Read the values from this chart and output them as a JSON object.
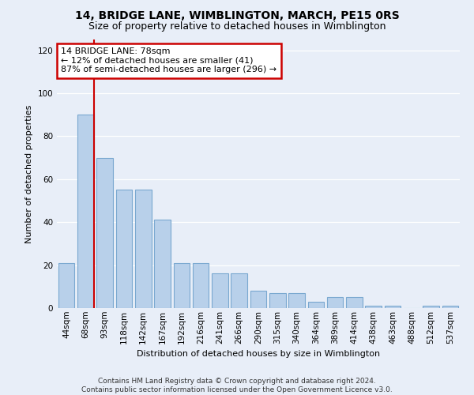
{
  "title1": "14, BRIDGE LANE, WIMBLINGTON, MARCH, PE15 0RS",
  "title2": "Size of property relative to detached houses in Wimblington",
  "xlabel": "Distribution of detached houses by size in Wimblington",
  "ylabel": "Number of detached properties",
  "categories": [
    "44sqm",
    "68sqm",
    "93sqm",
    "118sqm",
    "142sqm",
    "167sqm",
    "192sqm",
    "216sqm",
    "241sqm",
    "266sqm",
    "290sqm",
    "315sqm",
    "340sqm",
    "364sqm",
    "389sqm",
    "414sqm",
    "438sqm",
    "463sqm",
    "488sqm",
    "512sqm",
    "537sqm"
  ],
  "values": [
    21,
    90,
    70,
    55,
    55,
    41,
    21,
    21,
    16,
    16,
    8,
    7,
    7,
    3,
    5,
    5,
    1,
    1,
    0,
    1,
    1
  ],
  "bar_color": "#b8d0ea",
  "bar_edge_color": "#7aa8d0",
  "bg_color": "#e8eef8",
  "grid_color": "#ffffff",
  "red_line_x": 1.42,
  "annotation_text": "14 BRIDGE LANE: 78sqm\n← 12% of detached houses are smaller (41)\n87% of semi-detached houses are larger (296) →",
  "ylim": [
    0,
    125
  ],
  "yticks": [
    0,
    20,
    40,
    60,
    80,
    100,
    120
  ],
  "footnote": "Contains HM Land Registry data © Crown copyright and database right 2024.\nContains public sector information licensed under the Open Government Licence v3.0.",
  "red_line_color": "#cc0000",
  "annotation_box_color": "#ffffff",
  "annotation_box_edge": "#cc0000",
  "title1_fontsize": 10,
  "title2_fontsize": 9,
  "xlabel_fontsize": 8,
  "ylabel_fontsize": 8,
  "tick_fontsize": 7.5,
  "annot_fontsize": 8,
  "footnote_fontsize": 6.5
}
